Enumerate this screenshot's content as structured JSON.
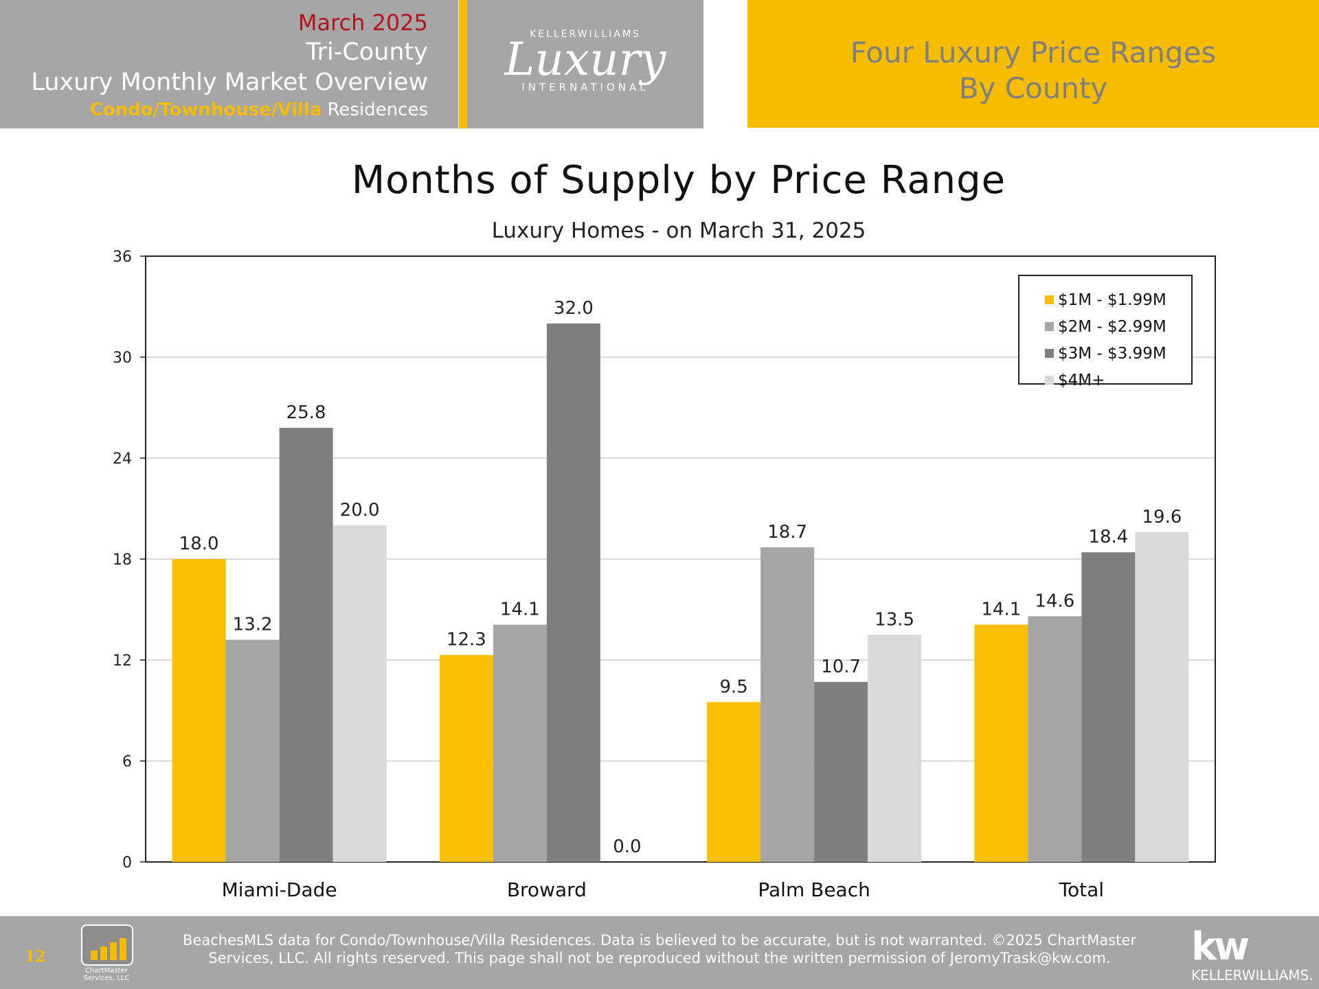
{
  "header": {
    "month": "March 2025",
    "region": "Tri-County",
    "title": "Luxury Monthly Market Overview",
    "property_type": "Condo/Townhouse/Villa",
    "property_suffix": " Residences",
    "logo": {
      "top": "KELLERWILLIAMS",
      "script": "Luxury",
      "bottom": "INTERNATIONAL"
    },
    "right_title_1": "Four Luxury Price Ranges",
    "right_title_2": "By County"
  },
  "chart_data": {
    "type": "bar",
    "title": "Months of Supply by Price Range",
    "subtitle": "Luxury Homes - on March 31, 2025",
    "categories": [
      "Miami-Dade",
      "Broward",
      "Palm Beach",
      "Total"
    ],
    "series": [
      {
        "name": "$1M - $1.99M",
        "color": "#f8bf00",
        "values": [
          18.0,
          12.3,
          9.5,
          14.1
        ]
      },
      {
        "name": "$2M - $2.99M",
        "color": "#a5a5a5",
        "values": [
          13.2,
          14.1,
          18.7,
          14.6
        ]
      },
      {
        "name": "$3M - $3.99M",
        "color": "#7f7f7f",
        "values": [
          25.8,
          32.0,
          10.7,
          18.4
        ]
      },
      {
        "name": "$4M+",
        "color": "#d9d9d9",
        "values": [
          20.0,
          0.0,
          13.5,
          19.6
        ]
      }
    ],
    "ylim": [
      0,
      36
    ],
    "yticks": [
      0,
      6,
      12,
      18,
      24,
      30,
      36
    ],
    "grid": true,
    "legend": "top-right"
  },
  "footer": {
    "page_number": "12",
    "chartmaster_1": "ChartMaster",
    "chartmaster_2": "Services, LLC",
    "disclaimer_1": "BeachesMLS data for Condo/Townhouse/Villa Residences.  Data is believed to be accurate, but is not warranted.   ©2025  ChartMaster",
    "disclaimer_2": "Services, LLC.  All rights reserved. This page shall not be reproduced without the written permission of JeromyTrask@kw.com.",
    "kw_logo": "kw",
    "kw_name": "KELLERWILLIAMS."
  }
}
